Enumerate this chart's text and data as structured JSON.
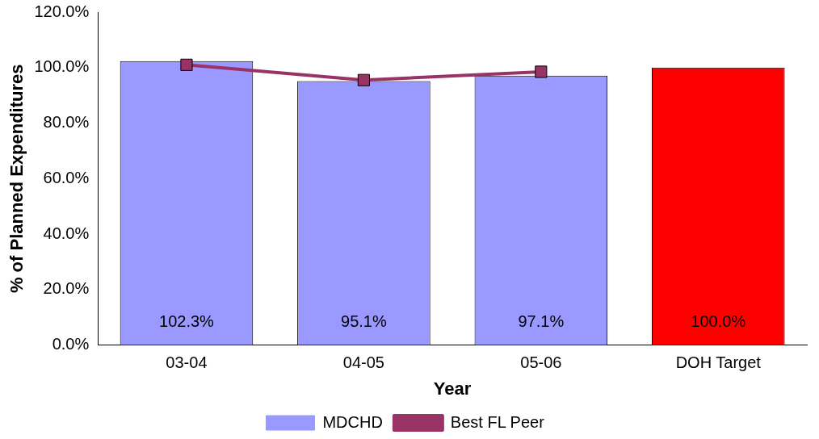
{
  "chart_data": {
    "type": "bar",
    "xlabel": "Year",
    "ylabel": "% of Planned Expenditures",
    "categories": [
      "03-04",
      "04-05",
      "05-06",
      "DOH Target"
    ],
    "series": [
      {
        "name": "MDCHD",
        "color": "#9999ff",
        "values": [
          102.3,
          95.1,
          97.1,
          null
        ],
        "value_labels": [
          "102.3%",
          "95.1%",
          "97.1%",
          null
        ]
      },
      {
        "color": "#ff0000",
        "values": [
          null,
          null,
          null,
          100.0
        ],
        "value_labels": [
          null,
          null,
          null,
          "100.0%"
        ]
      },
      {
        "name": "Best FL Peer",
        "type": "line",
        "color": "#993366",
        "values": [
          101.0,
          95.5,
          98.5,
          null
        ],
        "marker": "square"
      }
    ],
    "ylim": [
      0,
      120
    ],
    "yticks": [
      {
        "value": 0,
        "label": "0.0%"
      },
      {
        "value": 20,
        "label": "20.0%"
      },
      {
        "value": 40,
        "label": "40.0%"
      },
      {
        "value": 60,
        "label": "60.0%"
      },
      {
        "value": 80,
        "label": "80.0%"
      },
      {
        "value": 100,
        "label": "100.0%"
      },
      {
        "value": 120,
        "label": "120.0%"
      }
    ],
    "grid": false,
    "legend": "bottom"
  }
}
